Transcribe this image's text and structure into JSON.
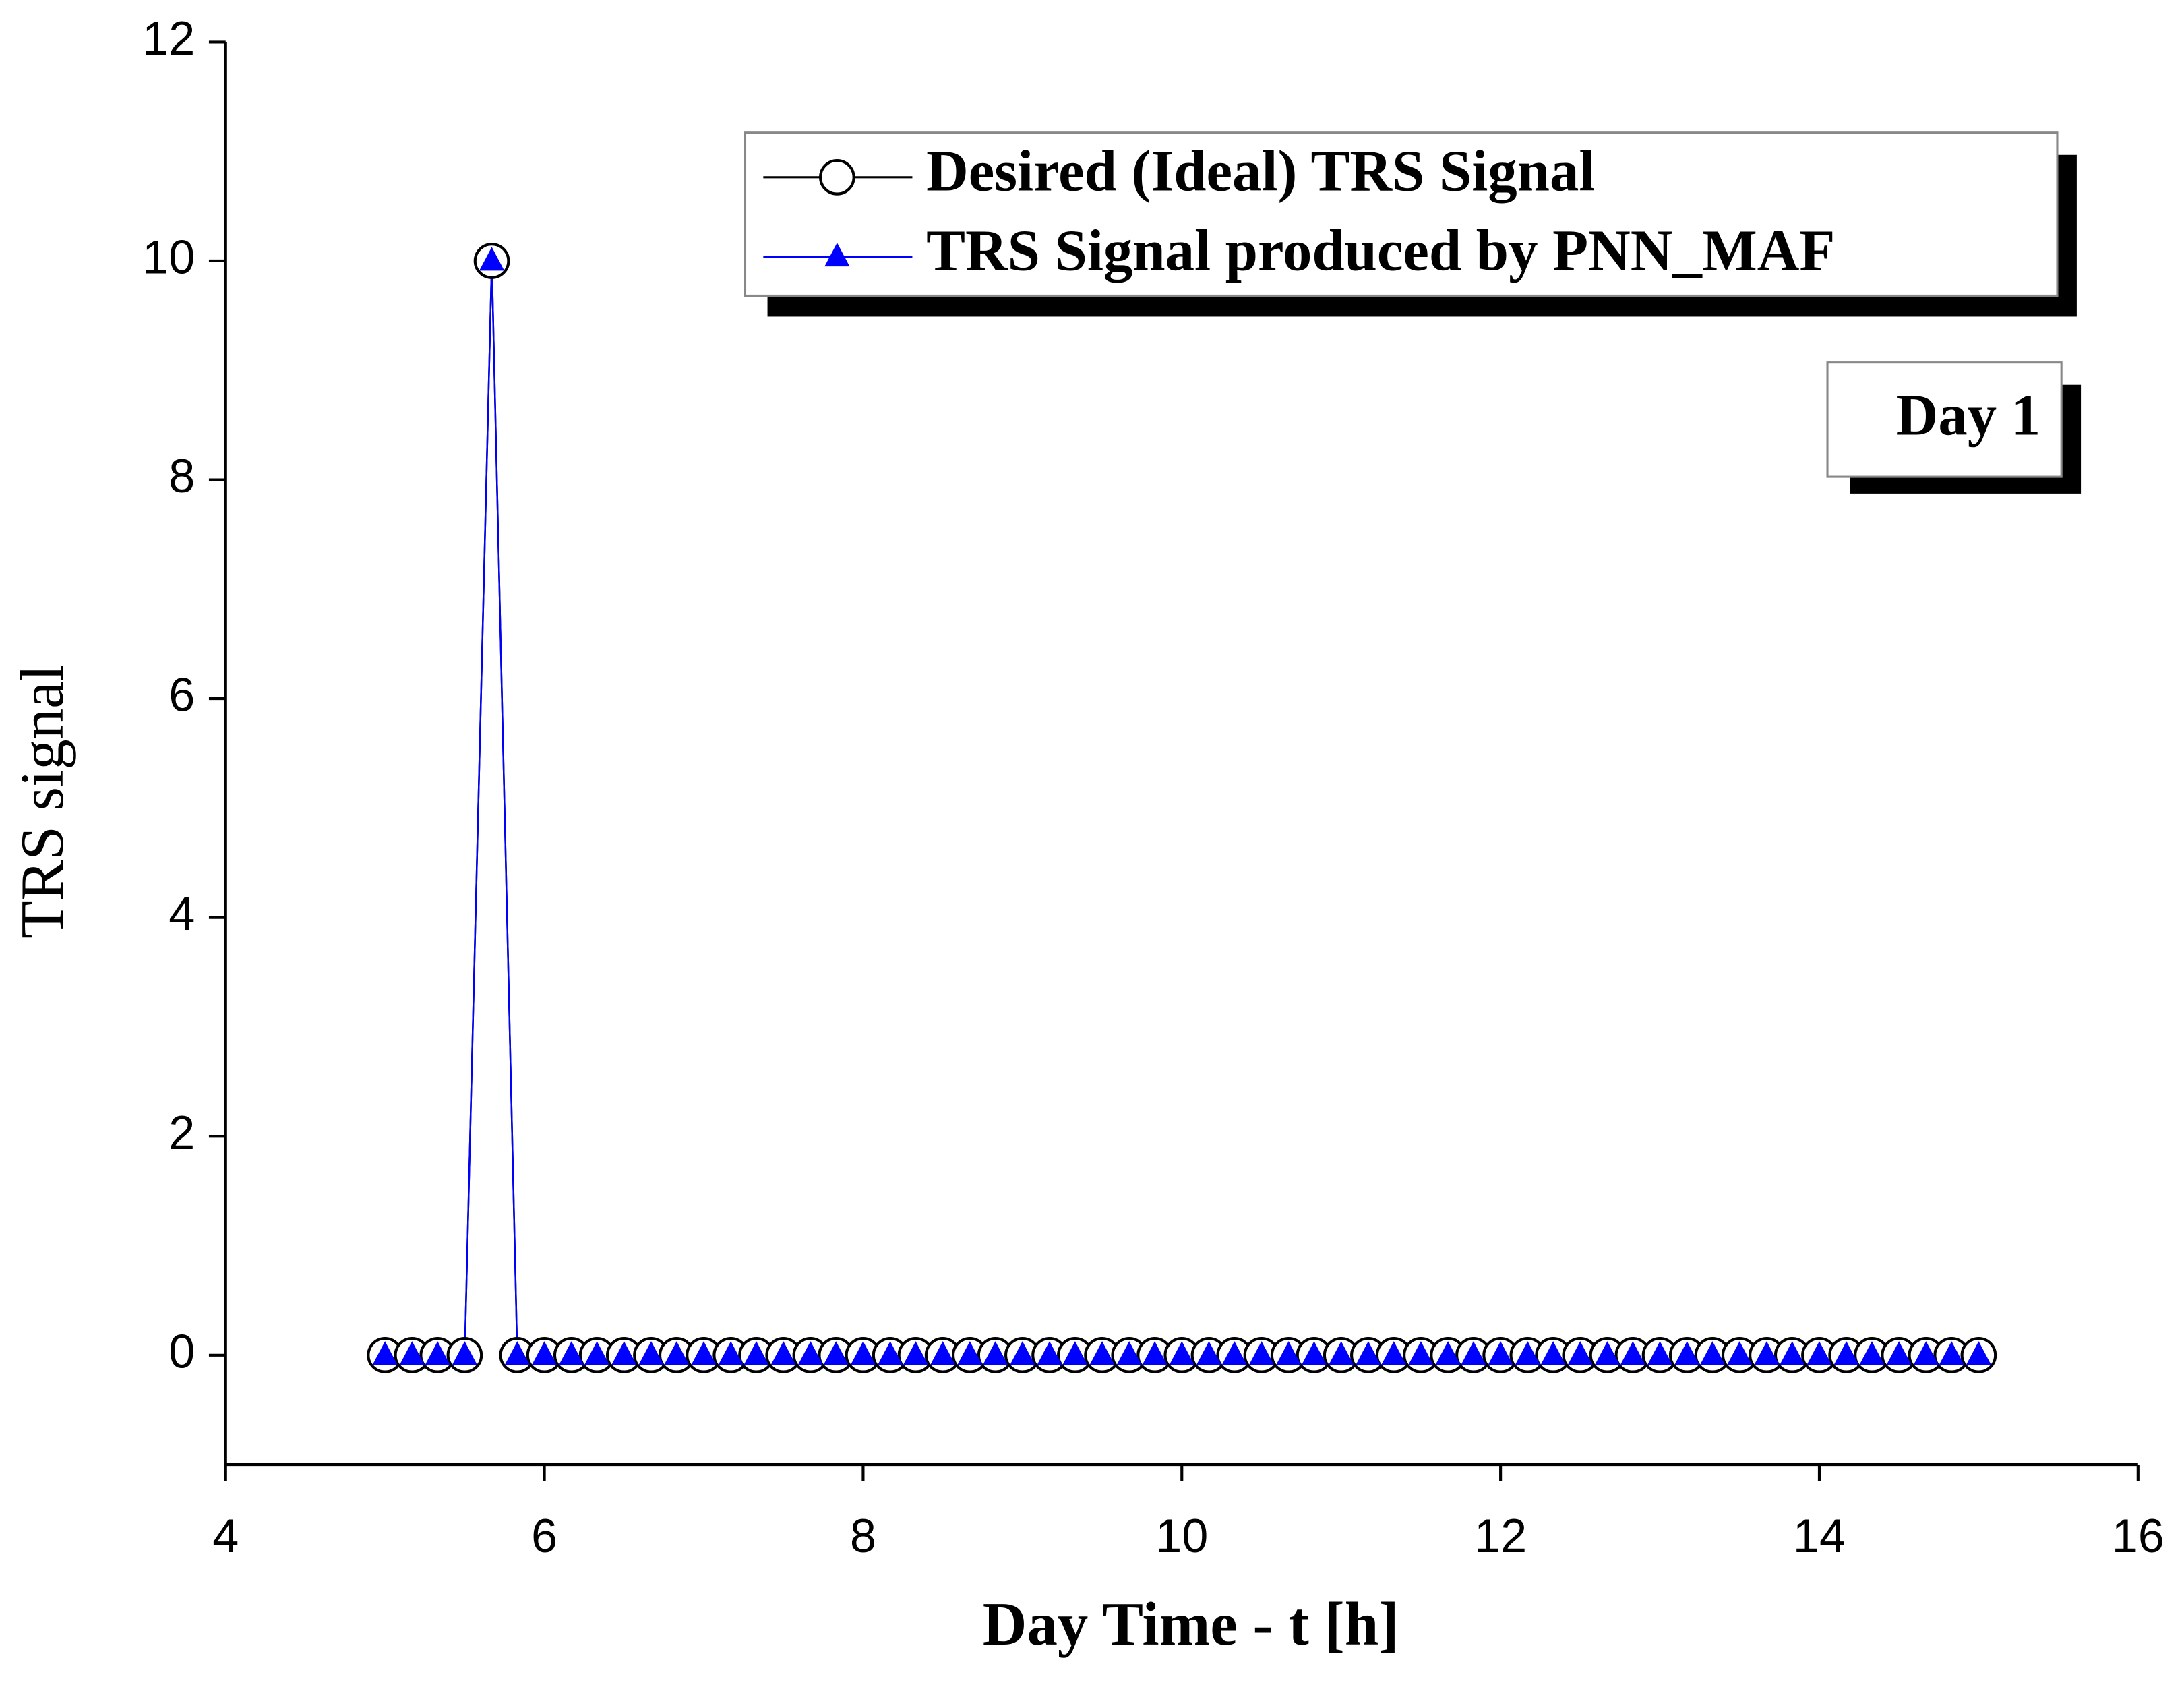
{
  "chart_data": {
    "type": "line",
    "x_label": "Day Time - t [h]",
    "y_label": "TRS signal",
    "annotation": "Day 1",
    "legend": "top right",
    "x": [
      5,
      5.17,
      5.33,
      5.5,
      5.67,
      5.83,
      6,
      6.17,
      6.33,
      6.5,
      6.67,
      6.83,
      7,
      7.17,
      7.33,
      7.5,
      7.67,
      7.83,
      8,
      8.17,
      8.33,
      8.5,
      8.67,
      8.83,
      9,
      9.17,
      9.33,
      9.5,
      9.67,
      9.83,
      10,
      10.17,
      10.33,
      10.5,
      10.67,
      10.83,
      11,
      11.17,
      11.33,
      11.5,
      11.67,
      11.83,
      12,
      12.17,
      12.33,
      12.5,
      12.67,
      12.83,
      13,
      13.17,
      13.33,
      13.5,
      13.67,
      13.83,
      14,
      14.17,
      14.33,
      14.5,
      14.67,
      14.83,
      15
    ],
    "series": [
      {
        "name": "Desired (Ideal) TRS Signal",
        "color": "#000000",
        "marker": "circle",
        "values": [
          0,
          0,
          0,
          0,
          10,
          0,
          0,
          0,
          0,
          0,
          0,
          0,
          0,
          0,
          0,
          0,
          0,
          0,
          0,
          0,
          0,
          0,
          0,
          0,
          0,
          0,
          0,
          0,
          0,
          0,
          0,
          0,
          0,
          0,
          0,
          0,
          0,
          0,
          0,
          0,
          0,
          0,
          0,
          0,
          0,
          0,
          0,
          0,
          0,
          0,
          0,
          0,
          0,
          0,
          0,
          0,
          0,
          0,
          0,
          0,
          0
        ]
      },
      {
        "name": "TRS Signal produced by PNN_MAF",
        "color": "#0000ff",
        "marker": "triangle",
        "values": [
          0,
          0,
          0,
          0,
          10,
          0,
          0,
          0,
          0,
          0,
          0,
          0,
          0,
          0,
          0,
          0,
          0,
          0,
          0,
          0,
          0,
          0,
          0,
          0,
          0,
          0,
          0,
          0,
          0,
          0,
          0,
          0,
          0,
          0,
          0,
          0,
          0,
          0,
          0,
          0,
          0,
          0,
          0,
          0,
          0,
          0,
          0,
          0,
          0,
          0,
          0,
          0,
          0,
          0,
          0,
          0,
          0,
          0,
          0,
          0,
          0
        ]
      }
    ],
    "xlim": [
      4,
      16
    ],
    "xticks": [
      4,
      6,
      8,
      10,
      12,
      14,
      16
    ],
    "ylim": [
      -1,
      12
    ],
    "yticks": [
      0,
      2,
      4,
      6,
      8,
      10,
      12
    ]
  }
}
